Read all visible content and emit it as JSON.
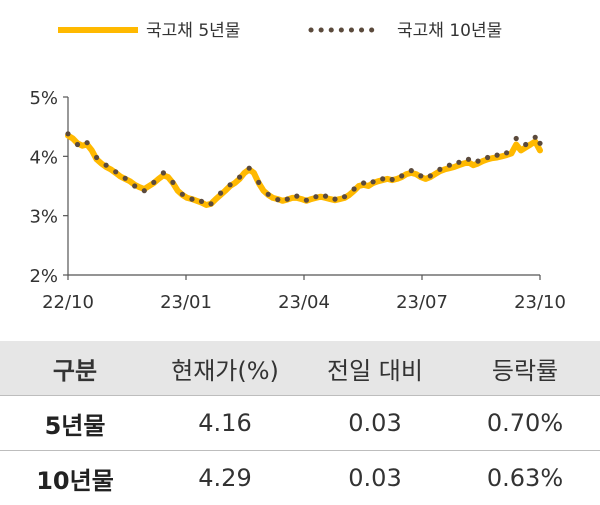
{
  "chart_data": {
    "type": "line",
    "x_ticks": [
      "22/10",
      "23/01",
      "23/04",
      "23/07",
      "23/10"
    ],
    "y_ticks": [
      "2%",
      "3%",
      "4%",
      "5%"
    ],
    "ylim": [
      2,
      5
    ],
    "grid": false,
    "legend_position": "top",
    "series": [
      {
        "name": "국고채 5년물",
        "style": "solid",
        "color": "#ffb900",
        "values": [
          4.35,
          4.3,
          4.22,
          4.18,
          4.2,
          4.1,
          3.95,
          3.88,
          3.82,
          3.78,
          3.72,
          3.66,
          3.62,
          3.58,
          3.52,
          3.48,
          3.45,
          3.5,
          3.55,
          3.62,
          3.68,
          3.65,
          3.55,
          3.42,
          3.35,
          3.3,
          3.28,
          3.25,
          3.22,
          3.18,
          3.2,
          3.28,
          3.35,
          3.42,
          3.5,
          3.55,
          3.62,
          3.72,
          3.78,
          3.72,
          3.55,
          3.42,
          3.35,
          3.3,
          3.28,
          3.25,
          3.27,
          3.3,
          3.3,
          3.28,
          3.25,
          3.28,
          3.3,
          3.32,
          3.3,
          3.28,
          3.26,
          3.28,
          3.3,
          3.35,
          3.42,
          3.5,
          3.52,
          3.5,
          3.55,
          3.58,
          3.6,
          3.62,
          3.6,
          3.62,
          3.65,
          3.7,
          3.72,
          3.7,
          3.65,
          3.62,
          3.65,
          3.7,
          3.75,
          3.78,
          3.8,
          3.82,
          3.85,
          3.88,
          3.9,
          3.85,
          3.88,
          3.92,
          3.95,
          3.97,
          3.98,
          4.0,
          4.02,
          4.05,
          4.2,
          4.1,
          4.15,
          4.2,
          4.25,
          4.1
        ]
      },
      {
        "name": "국고채 10년물",
        "style": "dotted",
        "color": "#5b4a3c",
        "values": [
          4.38,
          4.25,
          4.2,
          4.15,
          4.23,
          4.12,
          3.98,
          3.92,
          3.85,
          3.78,
          3.74,
          3.68,
          3.63,
          3.57,
          3.5,
          3.45,
          3.42,
          3.48,
          3.56,
          3.65,
          3.72,
          3.66,
          3.56,
          3.44,
          3.36,
          3.31,
          3.28,
          3.26,
          3.24,
          3.18,
          3.2,
          3.3,
          3.38,
          3.45,
          3.52,
          3.58,
          3.65,
          3.76,
          3.8,
          3.74,
          3.56,
          3.42,
          3.36,
          3.3,
          3.27,
          3.25,
          3.28,
          3.32,
          3.33,
          3.3,
          3.26,
          3.28,
          3.32,
          3.34,
          3.33,
          3.3,
          3.28,
          3.3,
          3.32,
          3.38,
          3.45,
          3.53,
          3.55,
          3.52,
          3.57,
          3.6,
          3.62,
          3.64,
          3.61,
          3.63,
          3.67,
          3.73,
          3.76,
          3.73,
          3.67,
          3.64,
          3.67,
          3.72,
          3.78,
          3.82,
          3.85,
          3.88,
          3.9,
          3.93,
          3.95,
          3.9,
          3.92,
          3.96,
          3.98,
          4.0,
          4.02,
          4.04,
          4.06,
          4.1,
          4.3,
          4.18,
          4.2,
          4.26,
          4.32,
          4.22
        ]
      }
    ]
  },
  "table": {
    "headers": [
      "구분",
      "현재가(%)",
      "전일 대비",
      "등락률"
    ],
    "rows": [
      [
        "5년물",
        "4.16",
        "0.03",
        "0.70%"
      ],
      [
        "10년물",
        "4.29",
        "0.03",
        "0.63%"
      ]
    ]
  }
}
